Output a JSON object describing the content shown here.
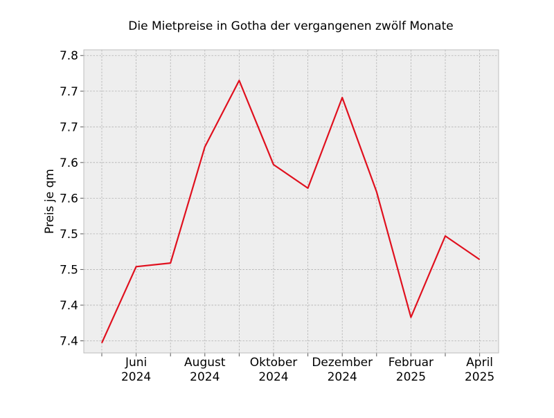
{
  "chart_data": {
    "type": "line",
    "title": "Die Mietpreise in Gotha der vergangenen zwölf Monate",
    "ylabel": "Preis je qm",
    "xlabel": "",
    "x": [
      "2024-05",
      "2024-06",
      "2024-07",
      "2024-08",
      "2024-09",
      "2024-10",
      "2024-11",
      "2024-12",
      "2025-01",
      "2025-02",
      "2025-03",
      "2025-04"
    ],
    "series": [
      {
        "values": [
          7.372,
          7.479,
          7.484,
          7.647,
          7.74,
          7.622,
          7.589,
          7.716,
          7.584,
          7.408,
          7.522,
          7.489
        ]
      }
    ],
    "ylim": [
      7.358,
      7.783
    ],
    "yticks": [
      {
        "value": 7.375,
        "label": "7.4"
      },
      {
        "value": 7.425,
        "label": "7.4"
      },
      {
        "value": 7.475,
        "label": "7.5"
      },
      {
        "value": 7.525,
        "label": "7.5"
      },
      {
        "value": 7.575,
        "label": "7.6"
      },
      {
        "value": 7.625,
        "label": "7.6"
      },
      {
        "value": 7.675,
        "label": "7.7"
      },
      {
        "value": 7.725,
        "label": "7.7"
      },
      {
        "value": 7.775,
        "label": "7.8"
      }
    ],
    "xticks": [
      {
        "index": 1,
        "month": "Juni",
        "year": "2024"
      },
      {
        "index": 3,
        "month": "August",
        "year": "2024"
      },
      {
        "index": 5,
        "month": "Oktober",
        "year": "2024"
      },
      {
        "index": 7,
        "month": "Dezember",
        "year": "2024"
      },
      {
        "index": 9,
        "month": "Februar",
        "year": "2025"
      },
      {
        "index": 11,
        "month": "April",
        "year": "2025"
      }
    ],
    "grid": true,
    "colors": {
      "line": "#e0101e",
      "plot_background": "#eeeeee",
      "grid": "#b0b0b0",
      "frame": "#bcbcbc"
    }
  }
}
